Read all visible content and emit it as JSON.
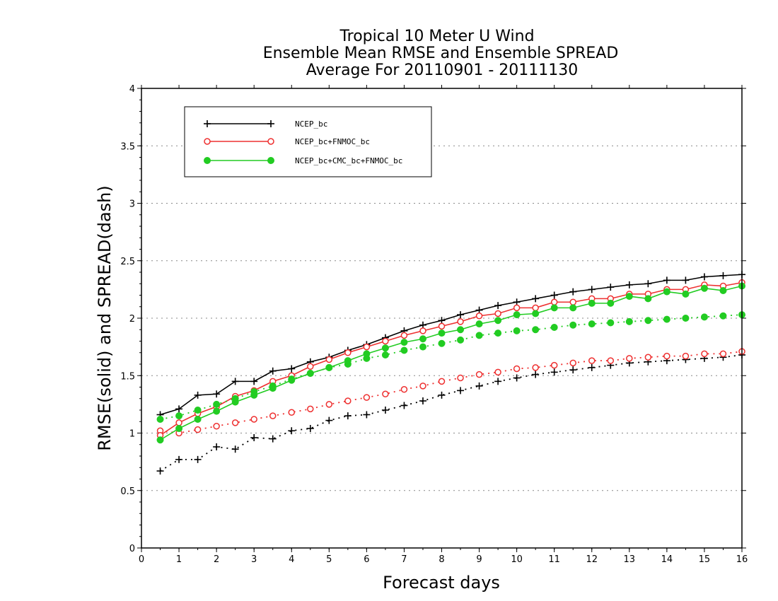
{
  "chart_data": {
    "type": "line",
    "title": [
      "Tropical 10 Meter U Wind",
      "Ensemble Mean RMSE and Ensemble SPREAD",
      "Average For 20110901 - 20111130"
    ],
    "xlabel": "Forecast days",
    "ylabel": "RMSE(solid) and SPREAD(dash)",
    "xlim": [
      0,
      16
    ],
    "ylim": [
      0,
      4
    ],
    "xticks": [
      0,
      1,
      2,
      3,
      4,
      5,
      6,
      7,
      8,
      9,
      10,
      11,
      12,
      13,
      14,
      15,
      16
    ],
    "xtick_labels": [
      "0",
      "1",
      "2",
      "3",
      "4",
      "5",
      "6",
      "7",
      "8",
      "9",
      "10",
      "11",
      "12",
      "13",
      "14",
      "15",
      "16"
    ],
    "yticks": [
      0,
      0.5,
      1,
      1.5,
      2,
      2.5,
      3,
      3.5,
      4
    ],
    "ytick_labels": [
      "0",
      "0.5",
      "1",
      "1.5",
      "2",
      "2.5",
      "3",
      "3.5",
      "4"
    ],
    "grid": "horizontal dotted",
    "legend_position": "top-left",
    "x": [
      0.5,
      1,
      1.5,
      2,
      2.5,
      3,
      3.5,
      4,
      4.5,
      5,
      5.5,
      6,
      6.5,
      7,
      7.5,
      8,
      8.5,
      9,
      9.5,
      10,
      10.5,
      11,
      11.5,
      12,
      12.5,
      13,
      13.5,
      14,
      14.5,
      15,
      15.5,
      16
    ],
    "series": [
      {
        "name": "NCEP_bc",
        "color": "#000000",
        "marker": "plus",
        "rmse": [
          1.16,
          1.21,
          1.33,
          1.34,
          1.45,
          1.45,
          1.54,
          1.56,
          1.62,
          1.66,
          1.72,
          1.77,
          1.83,
          1.89,
          1.94,
          1.98,
          2.03,
          2.07,
          2.11,
          2.14,
          2.17,
          2.2,
          2.23,
          2.25,
          2.27,
          2.29,
          2.3,
          2.33,
          2.33,
          2.36,
          2.37,
          2.38
        ],
        "spread": [
          0.67,
          0.77,
          0.77,
          0.88,
          0.86,
          0.96,
          0.95,
          1.02,
          1.04,
          1.11,
          1.15,
          1.16,
          1.2,
          1.24,
          1.28,
          1.33,
          1.37,
          1.41,
          1.45,
          1.48,
          1.51,
          1.53,
          1.55,
          1.57,
          1.59,
          1.61,
          1.62,
          1.63,
          1.64,
          1.65,
          1.66,
          1.68
        ]
      },
      {
        "name": "NCEP_bc+FNMOC_bc",
        "color": "#ee3030",
        "marker": "open-circle",
        "rmse": [
          0.98,
          1.09,
          1.17,
          1.23,
          1.32,
          1.37,
          1.45,
          1.5,
          1.58,
          1.64,
          1.7,
          1.75,
          1.8,
          1.85,
          1.89,
          1.93,
          1.97,
          2.02,
          2.04,
          2.09,
          2.09,
          2.14,
          2.14,
          2.17,
          2.17,
          2.21,
          2.21,
          2.25,
          2.25,
          2.29,
          2.28,
          2.31
        ],
        "spread": [
          1.02,
          1.0,
          1.03,
          1.06,
          1.09,
          1.12,
          1.15,
          1.18,
          1.21,
          1.25,
          1.28,
          1.31,
          1.34,
          1.38,
          1.41,
          1.45,
          1.48,
          1.51,
          1.53,
          1.56,
          1.57,
          1.59,
          1.61,
          1.63,
          1.63,
          1.65,
          1.66,
          1.67,
          1.67,
          1.69,
          1.69,
          1.71
        ]
      },
      {
        "name": "NCEP_bc+CMC_bc+FNMOC_bc",
        "color": "#22cc22",
        "marker": "filled-circle",
        "rmse": [
          0.94,
          1.04,
          1.12,
          1.19,
          1.27,
          1.33,
          1.39,
          1.46,
          1.52,
          1.57,
          1.63,
          1.69,
          1.74,
          1.79,
          1.82,
          1.87,
          1.9,
          1.95,
          1.98,
          2.03,
          2.04,
          2.09,
          2.09,
          2.13,
          2.13,
          2.19,
          2.17,
          2.23,
          2.21,
          2.26,
          2.24,
          2.28
        ],
        "spread": [
          1.12,
          1.15,
          1.2,
          1.25,
          1.3,
          1.36,
          1.41,
          1.47,
          1.52,
          1.57,
          1.6,
          1.65,
          1.68,
          1.72,
          1.75,
          1.78,
          1.81,
          1.85,
          1.87,
          1.89,
          1.9,
          1.92,
          1.94,
          1.95,
          1.96,
          1.97,
          1.98,
          1.99,
          2.0,
          2.01,
          2.02,
          2.03
        ]
      }
    ]
  }
}
